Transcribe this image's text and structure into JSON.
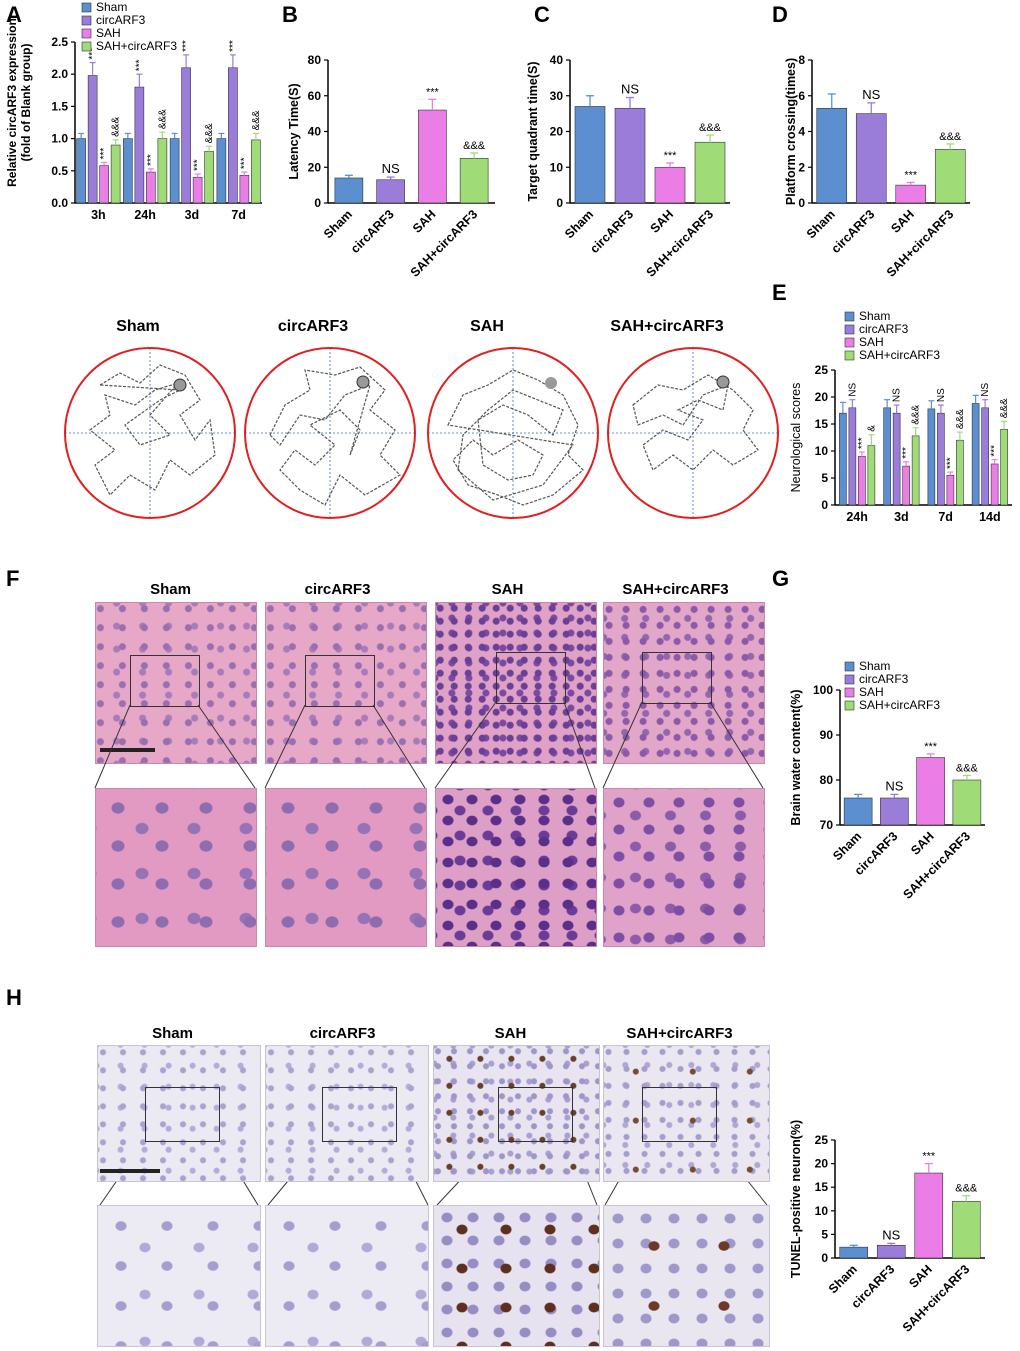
{
  "panels": {
    "A": "A",
    "B": "B",
    "C": "C",
    "D": "D",
    "E": "E",
    "F": "F",
    "G": "G",
    "H": "H"
  },
  "colors": {
    "Sham": "#5b8fd0",
    "circARF3": "#9a7dd8",
    "SAH": "#ea7ee6",
    "SAH+circARF3": "#9fdc78",
    "circle": "#e02020"
  },
  "group_names": [
    "Sham",
    "circARF3",
    "SAH",
    "SAH+circARF3"
  ],
  "chart_data": [
    {
      "id": "A",
      "type": "bar",
      "ylabel_line1": "Relative circARF3 expression",
      "ylabel_line2": "(fold of Blank group)",
      "categories": [
        "3h",
        "24h",
        "3d",
        "7d"
      ],
      "ylim": [
        0,
        2.5
      ],
      "yticks": [
        "0.0",
        "0.5",
        "1.0",
        "1.5",
        "2.0",
        "2.5"
      ],
      "legend": [
        "Sham",
        "circARF3",
        "SAH",
        "SAH+circARF3"
      ],
      "series": [
        {
          "name": "Sham",
          "values": [
            1.0,
            1.0,
            1.0,
            1.0
          ],
          "errors": [
            0.08,
            0.08,
            0.08,
            0.08
          ],
          "labels": [
            "",
            "",
            "",
            ""
          ]
        },
        {
          "name": "circARF3",
          "values": [
            1.98,
            1.8,
            2.1,
            2.1
          ],
          "errors": [
            0.2,
            0.2,
            0.2,
            0.2
          ],
          "labels": [
            "***",
            "***",
            "***",
            "***"
          ]
        },
        {
          "name": "SAH",
          "values": [
            0.58,
            0.48,
            0.4,
            0.43
          ],
          "errors": [
            0.05,
            0.05,
            0.05,
            0.05
          ],
          "labels": [
            "***",
            "***",
            "***",
            "***"
          ]
        },
        {
          "name": "SAH+circARF3",
          "values": [
            0.9,
            1.0,
            0.8,
            0.98
          ],
          "errors": [
            0.08,
            0.1,
            0.08,
            0.1
          ],
          "labels": [
            "&&&",
            "&&&",
            "&&&",
            "&&&"
          ]
        }
      ]
    },
    {
      "id": "B",
      "type": "bar",
      "ylabel": "Latency Time(S)",
      "categories": [
        "Sham",
        "circARF3",
        "SAH",
        "SAH+circARF3"
      ],
      "values": [
        14,
        13,
        52,
        25
      ],
      "errors": [
        1.5,
        1.5,
        6,
        3
      ],
      "labels": [
        "",
        "NS",
        "***",
        "&&&"
      ],
      "ylim": [
        0,
        80
      ],
      "yticks": [
        "0",
        "20",
        "40",
        "60",
        "80"
      ]
    },
    {
      "id": "C",
      "type": "bar",
      "ylabel": "Target quadrant time(S)",
      "categories": [
        "Sham",
        "circARF3",
        "SAH",
        "SAH+circARF3"
      ],
      "values": [
        27,
        26.5,
        10,
        17
      ],
      "errors": [
        3,
        3,
        1.2,
        2
      ],
      "labels": [
        "",
        "NS",
        "***",
        "&&&"
      ],
      "ylim": [
        0,
        40
      ],
      "yticks": [
        "0",
        "10",
        "20",
        "30",
        "40"
      ]
    },
    {
      "id": "D",
      "type": "bar",
      "ylabel": "Platform crossing(times)",
      "categories": [
        "Sham",
        "circARF3",
        "SAH",
        "SAH+circARF3"
      ],
      "values": [
        5.3,
        5.0,
        1.0,
        3.0
      ],
      "errors": [
        0.8,
        0.6,
        0.15,
        0.3
      ],
      "labels": [
        "",
        "NS",
        "***",
        "&&&"
      ],
      "ylim": [
        0,
        8
      ],
      "yticks": [
        "0",
        "2",
        "4",
        "6",
        "8"
      ]
    },
    {
      "id": "E",
      "type": "bar",
      "ylabel": "Neurological scores",
      "categories": [
        "24h",
        "3d",
        "7d",
        "14d"
      ],
      "ylim": [
        0,
        25
      ],
      "yticks": [
        "0",
        "5",
        "10",
        "15",
        "20",
        "25"
      ],
      "legend": [
        "Sham",
        "circARF3",
        "SAH",
        "SAH+circARF3"
      ],
      "series": [
        {
          "name": "Sham",
          "values": [
            17,
            18,
            17.8,
            18.8
          ],
          "errors": [
            2,
            1.5,
            1.5,
            1.5
          ],
          "labels": [
            "",
            "",
            "",
            ""
          ]
        },
        {
          "name": "circARF3",
          "values": [
            18,
            17,
            17,
            18
          ],
          "errors": [
            1.5,
            1.5,
            1.5,
            1.5
          ],
          "labels": [
            "NS",
            "NS",
            "NS",
            "NS"
          ]
        },
        {
          "name": "SAH",
          "values": [
            9,
            7.2,
            5.5,
            7.6
          ],
          "errors": [
            0.8,
            0.8,
            0.6,
            0.8
          ],
          "labels": [
            "***",
            "***",
            "***",
            "***"
          ]
        },
        {
          "name": "SAH+circARF3",
          "values": [
            11,
            12.8,
            12,
            14
          ],
          "errors": [
            2,
            1.5,
            1.5,
            1.5
          ],
          "labels": [
            "&",
            "&&&",
            "&&&",
            "&&&"
          ]
        }
      ]
    },
    {
      "id": "G",
      "type": "bar",
      "ylabel": "Brain water content(%)",
      "categories": [
        "Sham",
        "circARF3",
        "SAH",
        "SAH+circARF3"
      ],
      "values": [
        76,
        76,
        85,
        80
      ],
      "errors": [
        0.8,
        0.8,
        0.8,
        1.0
      ],
      "labels": [
        "",
        "NS",
        "***",
        "&&&"
      ],
      "ylim": [
        70,
        100
      ],
      "yticks": [
        "70",
        "80",
        "90",
        "100"
      ],
      "legend": [
        "Sham",
        "circARF3",
        "SAH",
        "SAH+circARF3"
      ]
    },
    {
      "id": "H",
      "type": "bar",
      "ylabel": "TUNEL-positive neuron(%)",
      "categories": [
        "Sham",
        "circARF3",
        "SAH",
        "SAH+circARF3"
      ],
      "values": [
        2.3,
        2.7,
        18,
        12
      ],
      "errors": [
        0.4,
        0.4,
        2,
        1.2
      ],
      "labels": [
        "",
        "NS",
        "***",
        "&&&"
      ],
      "ylim": [
        0,
        25
      ],
      "yticks": [
        "0",
        "5",
        "10",
        "15",
        "20",
        "25"
      ]
    }
  ],
  "morris_water_maze": {
    "titles": [
      "Sham",
      "circARF3",
      "SAH",
      "SAH+circARF3"
    ]
  },
  "he_staining": {
    "titles": [
      "Sham",
      "circARF3",
      "SAH",
      "SAH+circARF3"
    ]
  },
  "tunel_staining": {
    "titles": [
      "Sham",
      "circARF3",
      "SAH",
      "SAH+circARF3"
    ]
  }
}
